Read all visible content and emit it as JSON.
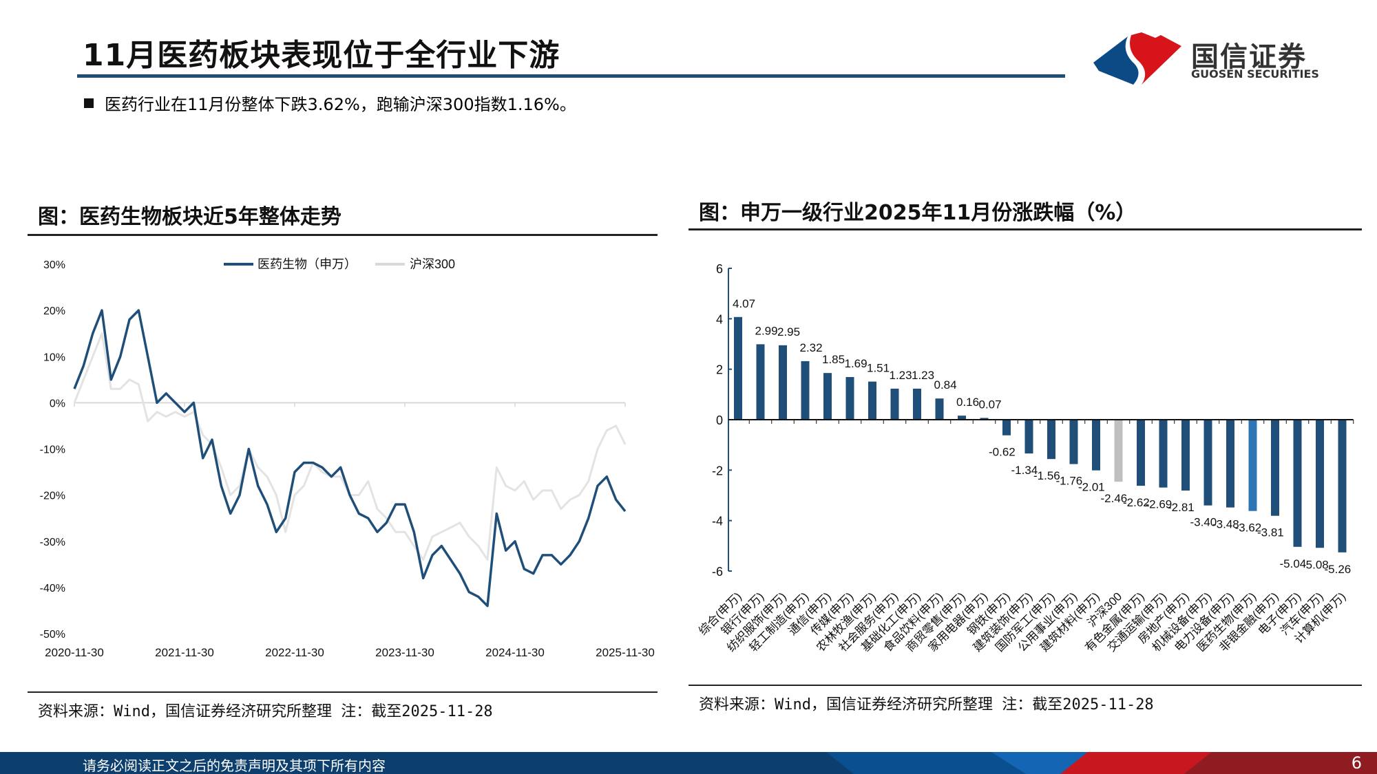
{
  "header": {
    "title": "11月医药板块表现位于全行业下游",
    "bullet": "医药行业在11月份整体下跌3.62%，跑输沪深300指数1.16%。",
    "logo": {
      "cn": "国信证券",
      "en": "GUOSEN SECURITIES",
      "colors": {
        "red": "#d7141a",
        "blue": "#0b4a85"
      }
    }
  },
  "left_panel": {
    "title": "图：医药生物板块近5年整体走势",
    "source": "资料来源：Wind，国信证券经济研究所整理 注：截至2025-11-28"
  },
  "right_panel": {
    "title": "图：申万一级行业2025年11月份涨跌幅（%）",
    "source": "资料来源：Wind，国信证券经济研究所整理 注：截至2025-11-28"
  },
  "footer": {
    "disclaimer": "请务必阅读正文之后的免责声明及其项下所有内容",
    "page": "6"
  },
  "chart_data": [
    {
      "type": "line",
      "ylim": [
        -50,
        30
      ],
      "y_ticks": [
        "30%",
        "20%",
        "10%",
        "0%",
        "-10%",
        "-20%",
        "-30%",
        "-40%",
        "-50%"
      ],
      "x_ticks": [
        "2020-11-30",
        "2021-11-30",
        "2022-11-30",
        "2023-11-30",
        "2024-11-30",
        "2025-11-30"
      ],
      "legend": "top-center",
      "x": [
        "2020-11",
        "2020-12",
        "2021-01",
        "2021-02",
        "2021-03",
        "2021-04",
        "2021-05",
        "2021-06",
        "2021-07",
        "2021-08",
        "2021-09",
        "2021-10",
        "2021-11",
        "2021-12",
        "2022-01",
        "2022-02",
        "2022-03",
        "2022-04",
        "2022-05",
        "2022-06",
        "2022-07",
        "2022-08",
        "2022-09",
        "2022-10",
        "2022-11",
        "2022-12",
        "2023-01",
        "2023-02",
        "2023-03",
        "2023-04",
        "2023-05",
        "2023-06",
        "2023-07",
        "2023-08",
        "2023-09",
        "2023-10",
        "2023-11",
        "2023-12",
        "2024-01",
        "2024-02",
        "2024-03",
        "2024-04",
        "2024-05",
        "2024-06",
        "2024-07",
        "2024-08",
        "2024-09",
        "2024-10",
        "2024-11",
        "2024-12",
        "2025-01",
        "2025-02",
        "2025-03",
        "2025-04",
        "2025-05",
        "2025-06",
        "2025-07",
        "2025-08",
        "2025-09",
        "2025-10",
        "2025-11"
      ],
      "series": [
        {
          "name": "医药生物（申万）",
          "color": "#1f4e79",
          "values": [
            3,
            8,
            15,
            20,
            5,
            10,
            18,
            20,
            10,
            0,
            2,
            0,
            -2,
            0,
            -12,
            -8,
            -18,
            -24,
            -20,
            -10,
            -18,
            -22,
            -28,
            -25,
            -15,
            -13,
            -13,
            -14,
            -16,
            -14,
            -20,
            -24,
            -25,
            -28,
            -26,
            -22,
            -22,
            -28,
            -38,
            -33,
            -31,
            -34,
            -37,
            -41,
            -42,
            -44,
            -24,
            -32,
            -30,
            -36,
            -37,
            -33,
            -33,
            -35,
            -33,
            -30,
            -25,
            -18,
            -16,
            -21,
            -23.5
          ]
        },
        {
          "name": "沪深300",
          "color": "#e3e3e3",
          "values": [
            0,
            5,
            10,
            15,
            3,
            3,
            5,
            4,
            -4,
            -2,
            -3,
            -2,
            -3,
            -2,
            -7,
            -9,
            -14,
            -20,
            -18,
            -10,
            -14,
            -16,
            -20,
            -28,
            -20,
            -18,
            -13,
            -15,
            -16,
            -16,
            -20,
            -20,
            -17,
            -23,
            -25,
            -28,
            -28,
            -31,
            -34,
            -29,
            -28,
            -27,
            -26,
            -29,
            -31,
            -34,
            -14,
            -18,
            -19,
            -17,
            -21,
            -19,
            -19,
            -23,
            -21,
            -20,
            -17,
            -10,
            -6,
            -5,
            -9
          ]
        }
      ]
    },
    {
      "type": "bar",
      "ylim": [
        -6,
        6
      ],
      "y_ticks": [
        "6",
        "4",
        "2",
        "0",
        "-2",
        "-4",
        "-6"
      ],
      "colors": {
        "default": "#1f4e79",
        "benchmark": "#bfbfbf",
        "highlight": "#2e75b6"
      },
      "categories": [
        "综合(申万)",
        "银行(申万)",
        "纺织服饰(申万)",
        "轻工制造(申万)",
        "通信(申万)",
        "传媒(申万)",
        "农林牧渔(申万)",
        "社会服务(申万)",
        "基础化工(申万)",
        "食品饮料(申万)",
        "商贸零售(申万)",
        "家用电器(申万)",
        "钢铁(申万)",
        "建筑装饰(申万)",
        "国防军工(申万)",
        "公用事业(申万)",
        "建筑材料(申万)",
        "沪深300",
        "有色金属(申万)",
        "交通运输(申万)",
        "房地产(申万)",
        "机械设备(申万)",
        "电力设备(申万)",
        "医药生物(申万)",
        "非银金融(申万)",
        "电子(申万)",
        "汽车(申万)",
        "计算机(申万)"
      ],
      "values": [
        4.07,
        2.99,
        2.95,
        2.32,
        1.85,
        1.69,
        1.51,
        1.23,
        1.23,
        0.84,
        0.16,
        0.07,
        -0.62,
        -1.34,
        -1.56,
        -1.76,
        -2.01,
        -2.46,
        -2.62,
        -2.69,
        -2.81,
        -3.4,
        -3.48,
        -3.62,
        -3.81,
        -5.04,
        -5.08,
        -5.26
      ],
      "labels": [
        "4.07",
        "2.99",
        "2.95",
        "2.32",
        "1.85",
        "1.69",
        "1.51",
        "1.23",
        "1.23",
        "0.84",
        "0.16",
        "0.07",
        "-0.62",
        "-1.34",
        "-1.56",
        "-1.76",
        "-2.01",
        "-2.46",
        "-2.62",
        "-2.69",
        "-2.81",
        "-3.40",
        "-3.48",
        "-3.62",
        "-3.81",
        "-5.04",
        "-5.08",
        "-5.26"
      ]
    }
  ]
}
